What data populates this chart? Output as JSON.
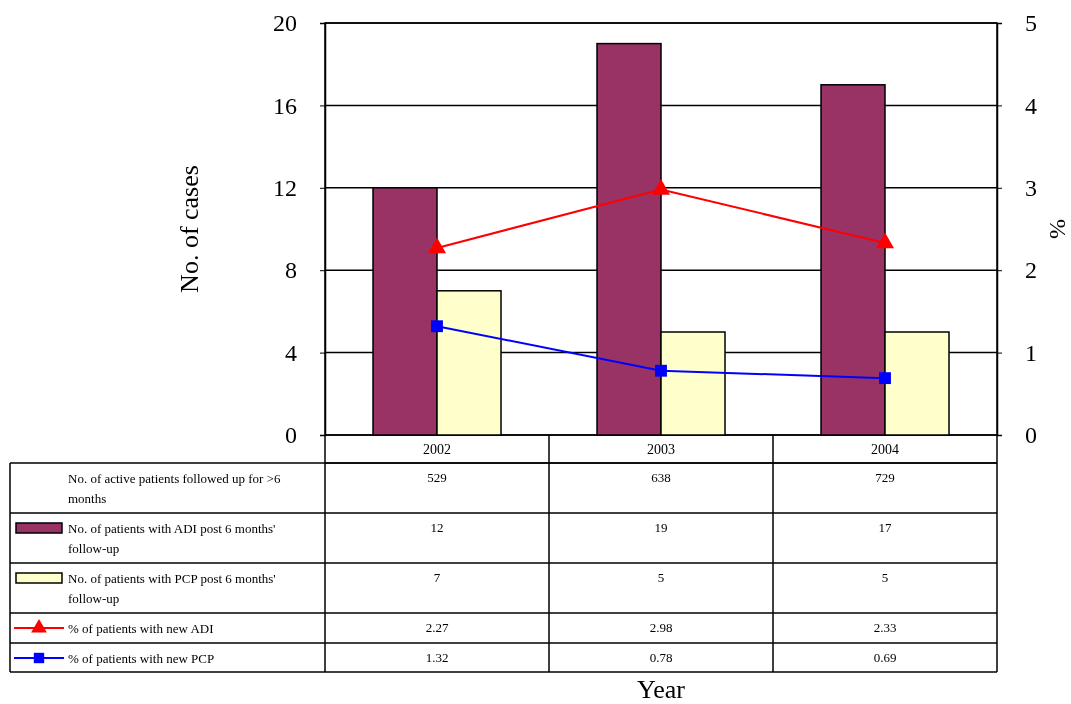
{
  "chart_data": {
    "type": "bar",
    "ylabel": "No. of cases",
    "y2label": "%",
    "categories": [
      "2002",
      "2003",
      "2004"
    ],
    "series": [
      {
        "name": "No. of patients with ADI post 6 months' follow-up",
        "color": "#993366",
        "values": [
          12,
          19,
          17
        ]
      },
      {
        "name": "No. of patients with PCP post 6 months' follow-up",
        "color": "#ffffcc",
        "values": [
          7,
          5,
          5
        ]
      },
      {
        "name": "% of patients with new ADI",
        "type": "line",
        "axis": "y2",
        "marker": "triangle",
        "color": "#ff0000",
        "values": [
          2.27,
          2.98,
          2.33
        ]
      },
      {
        "name": "% of patients with new PCP",
        "type": "line",
        "axis": "y2",
        "marker": "square",
        "color": "#0000ff",
        "values": [
          1.32,
          0.78,
          0.69
        ]
      }
    ],
    "ylim": [
      0,
      20
    ],
    "yticks": [
      0,
      4,
      8,
      12,
      16,
      20
    ],
    "y2lim": [
      0,
      5
    ],
    "y2ticks": [
      0,
      1,
      2,
      3,
      4,
      5
    ],
    "grid": "y",
    "legend": "bottom left",
    "data_labels": true,
    "annotations": [
      "Year",
      "No. of active patients followed up for >6 months",
      "529",
      "638",
      "729"
    ]
  }
}
